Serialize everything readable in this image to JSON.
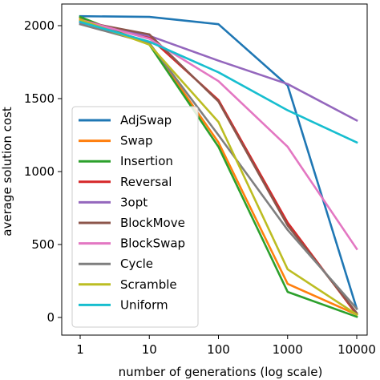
{
  "chart_data": {
    "type": "line",
    "xlabel": "number of generations (log scale)",
    "ylabel": "average solution cost",
    "x_scale": "log",
    "x": [
      1,
      10,
      100,
      1000,
      10000
    ],
    "x_tick_labels": [
      "1",
      "10",
      "100",
      "1000",
      "10000"
    ],
    "y_ticks": [
      0,
      500,
      1000,
      1500,
      2000
    ],
    "xlim": [
      1,
      10000
    ],
    "ylim": [
      -80,
      2110
    ],
    "grid": false,
    "legend_position": "lower-left",
    "series": [
      {
        "name": "AdjSwap",
        "color": "#1f77b4",
        "values": [
          2065,
          2060,
          2010,
          1590,
          60
        ]
      },
      {
        "name": "Swap",
        "color": "#ff7f0e",
        "values": [
          2050,
          1880,
          1200,
          230,
          20
        ]
      },
      {
        "name": "Insertion",
        "color": "#2ca02c",
        "values": [
          2060,
          1870,
          1170,
          175,
          5
        ]
      },
      {
        "name": "Reversal",
        "color": "#d62728",
        "values": [
          2040,
          1920,
          1490,
          650,
          20
        ]
      },
      {
        "name": "3opt",
        "color": "#9467bd",
        "values": [
          2020,
          1930,
          1760,
          1600,
          1350
        ]
      },
      {
        "name": "BlockMove",
        "color": "#8c564b",
        "values": [
          2030,
          1940,
          1480,
          630,
          30
        ]
      },
      {
        "name": "BlockSwap",
        "color": "#e377c2",
        "values": [
          2040,
          1910,
          1620,
          1170,
          470
        ]
      },
      {
        "name": "Cycle",
        "color": "#7f7f7f",
        "values": [
          2010,
          1880,
          1250,
          600,
          60
        ]
      },
      {
        "name": "Scramble",
        "color": "#bcbd22",
        "values": [
          2040,
          1870,
          1340,
          330,
          20
        ]
      },
      {
        "name": "Uniform",
        "color": "#17becf",
        "values": [
          2025,
          1890,
          1680,
          1420,
          1200
        ]
      }
    ]
  }
}
